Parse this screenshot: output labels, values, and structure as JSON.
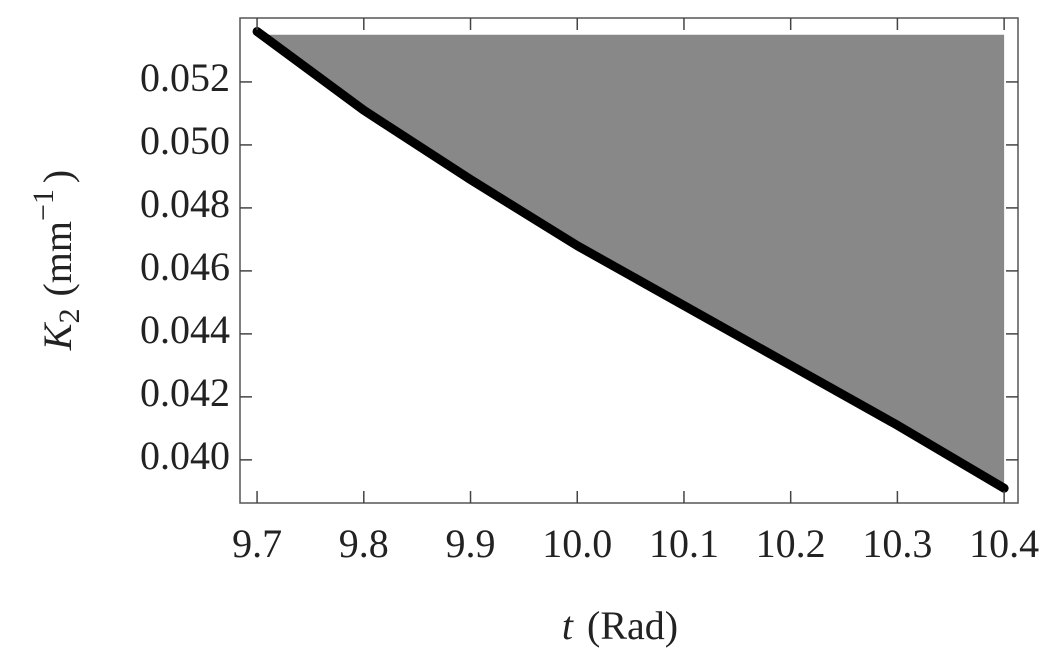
{
  "chart_data": {
    "type": "line",
    "x_label": {
      "var": "t",
      "unit": "(Rad)"
    },
    "y_label": {
      "base": "K",
      "sub": "2",
      "unit": "(mm",
      "sup": "−1",
      "close": ")"
    },
    "x": [
      9.7,
      9.8,
      9.9,
      10.0,
      10.1,
      10.2,
      10.3,
      10.4
    ],
    "values": [
      0.0536,
      0.0511,
      0.0489,
      0.0468,
      0.0449,
      0.043,
      0.0411,
      0.0391
    ],
    "color": "#000000",
    "fill": {
      "to": 0.0535,
      "color": "#888888"
    },
    "xlim": [
      9.684,
      10.413
    ],
    "ylim": [
      0.03863,
      0.05403
    ],
    "xticks": [
      9.7,
      9.8,
      9.9,
      {
        "value": 10,
        "label": "10.0"
      },
      10.1,
      10.2,
      10.3,
      10.4
    ],
    "yticks": [
      {
        "value": 0.04,
        "label": "0.040"
      },
      0.042,
      0.044,
      0.046,
      0.048,
      {
        "value": 0.05,
        "label": "0.050"
      },
      0.052
    ]
  }
}
